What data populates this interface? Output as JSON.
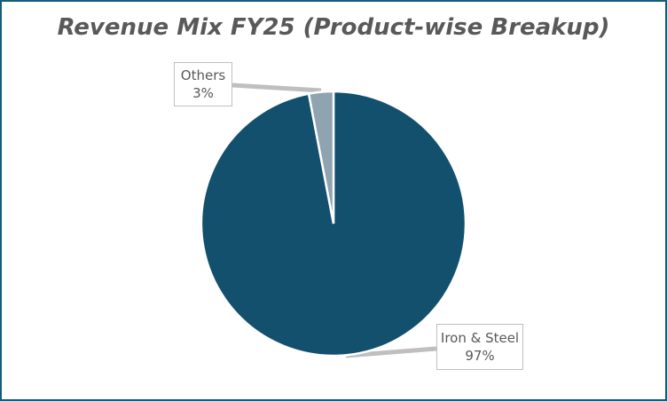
{
  "chart_data": {
    "type": "pie",
    "title": "Revenue Mix FY25 (Product-wise Breakup)",
    "categories": [
      "Iron & Steel",
      "Others"
    ],
    "values": [
      97,
      3
    ],
    "unit": "%",
    "colors": [
      "#12506e",
      "#8fa3b0"
    ],
    "legend": "none",
    "data_labels": [
      {
        "name": "Others",
        "value": "3%"
      },
      {
        "name": "Iron & Steel",
        "value": "97%"
      }
    ]
  },
  "labels": {
    "others_name": "Others",
    "others_value": "3%",
    "iron_name": "Iron & Steel",
    "iron_value": "97%"
  },
  "colors": {
    "border": "#145c7c",
    "title": "#595959"
  }
}
